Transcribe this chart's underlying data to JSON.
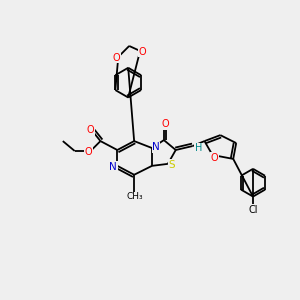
{
  "background_color": "#efefef",
  "fig_width": 3.0,
  "fig_height": 3.0,
  "dpi": 100,
  "atom_colors": {
    "C": "#000000",
    "N": "#0000cc",
    "O": "#ff0000",
    "S": "#cccc00",
    "Cl": "#000000",
    "H": "#008888"
  },
  "lw": 1.3
}
